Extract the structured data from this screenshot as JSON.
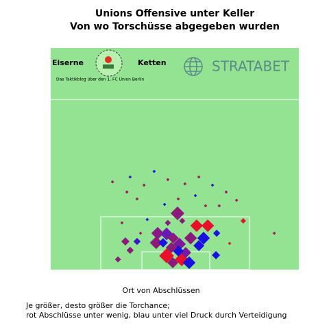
{
  "chart_data": {
    "type": "scatter",
    "title": "Unions Offensive unter Keller",
    "subtitle": "Von wo Torschüsse abgegeben wurden",
    "brand_left": "Eiserne",
    "brand_right": "Ketten",
    "brand_tagline": "Das Taktikblog über den 1. FC Union Berlin",
    "sponsor": "STRATABET",
    "xlabel": "Ort von Abschlüssen",
    "notes": [
      "Je größer, desto größer die Torchance;",
      "rot Abschlüsse unter wenig, blau unter viel Druck durch Verteidigung"
    ],
    "xlim": [
      0,
      100
    ],
    "ylim": [
      0,
      100
    ],
    "x": [
      51.1,
      58.8,
      63.3,
      43.1,
      46.7,
      49.4,
      42.5,
      51.9,
      56.4,
      61.6,
      59.7,
      46.7,
      52.8,
      49.2,
      55.8,
      54.4,
      51.4,
      48.6,
      45.3,
      66.6,
      30.1,
      34.8,
      32.0,
      27.1,
      66.9,
      77.6,
      47.2,
      53.0,
      24.9,
      32.0,
      37.6,
      41.7,
      47.2,
      54.1,
      59.7,
      65.2,
      70.7,
      74.9,
      30.7,
      45.9,
      62.4,
      67.9,
      90.1,
      38.9,
      36.2,
      72.1,
      28.7,
      58.3,
      34.8,
      51.4
    ],
    "values": [
      25.4,
      19.8,
      19.8,
      16.4,
      16.1,
      14.2,
      12.1,
      11.5,
      14.2,
      14.2,
      10.8,
      6.2,
      4.6,
      3.1,
      3.1,
      7.7,
      8.4,
      9.9,
      12.1,
      6.5,
      12.7,
      12.7,
      8.7,
      4.6,
      16.4,
      22.0,
      21.1,
      22.0,
      39.6,
      41.8,
      38.1,
      44.3,
      40.6,
      38.7,
      41.8,
      38.1,
      35.0,
      31.3,
      35.0,
      29.4,
      28.8,
      28.8,
      16.4,
      22.6,
      16.4,
      11.8,
      21.1,
      33.4,
      31.9,
      31.9
    ],
    "sizes": [
      0.2,
      0.18,
      0.18,
      0.18,
      0.18,
      0.15,
      0.18,
      0.18,
      0.18,
      0.18,
      0.15,
      0.22,
      0.2,
      0.15,
      0.18,
      0.15,
      0.15,
      0.15,
      0.12,
      0.1,
      0.1,
      0.08,
      0.08,
      0.06,
      0.08,
      0.05,
      0.06,
      0.06,
      0.01,
      0.01,
      0.01,
      0.01,
      0.01,
      0.01,
      0.01,
      0.01,
      0.01,
      0.01,
      0.01,
      0.01,
      0.01,
      0.01,
      0.01,
      0.01,
      0.01,
      0.01,
      0.01,
      0.01,
      0.01,
      0.01
    ],
    "colors": [
      "#8b1a7a",
      "#e8102a",
      "#e8102a",
      "#8a1a8a",
      "#6a1ab0",
      "#8b1a7a",
      "#8b1a7a",
      "#7a1a9a",
      "#8b1a7a",
      "#1a10e0",
      "#1a10e0",
      "#e8102a",
      "#e8102a",
      "#8b1a7a",
      "#1a10e0",
      "#7a1a9a",
      "#1a10e0",
      "#8b1a7a",
      "#1a10e0",
      "#1a10e0",
      "#8b1a7a",
      "#3a14d0",
      "#8b1a7a",
      "#8b1a7a",
      "#1a10e0",
      "#e8102a",
      "#8b1a7a",
      "#8b1a7a",
      "#a01a5a",
      "#3a14d0",
      "#a01a5a",
      "#1a10e0",
      "#a01a5a",
      "#a01a5a",
      "#a01a5a",
      "#3a14d0",
      "#a01a5a",
      "#a01a5a",
      "#a01a5a",
      "#1a10e0",
      "#a01a5a",
      "#a01a5a",
      "#a01a5a",
      "#1a10e0",
      "#a01a5a",
      "#e8102a",
      "#a01a5a",
      "#1a10e0",
      "#a01a5a",
      "#a01a5a"
    ]
  }
}
